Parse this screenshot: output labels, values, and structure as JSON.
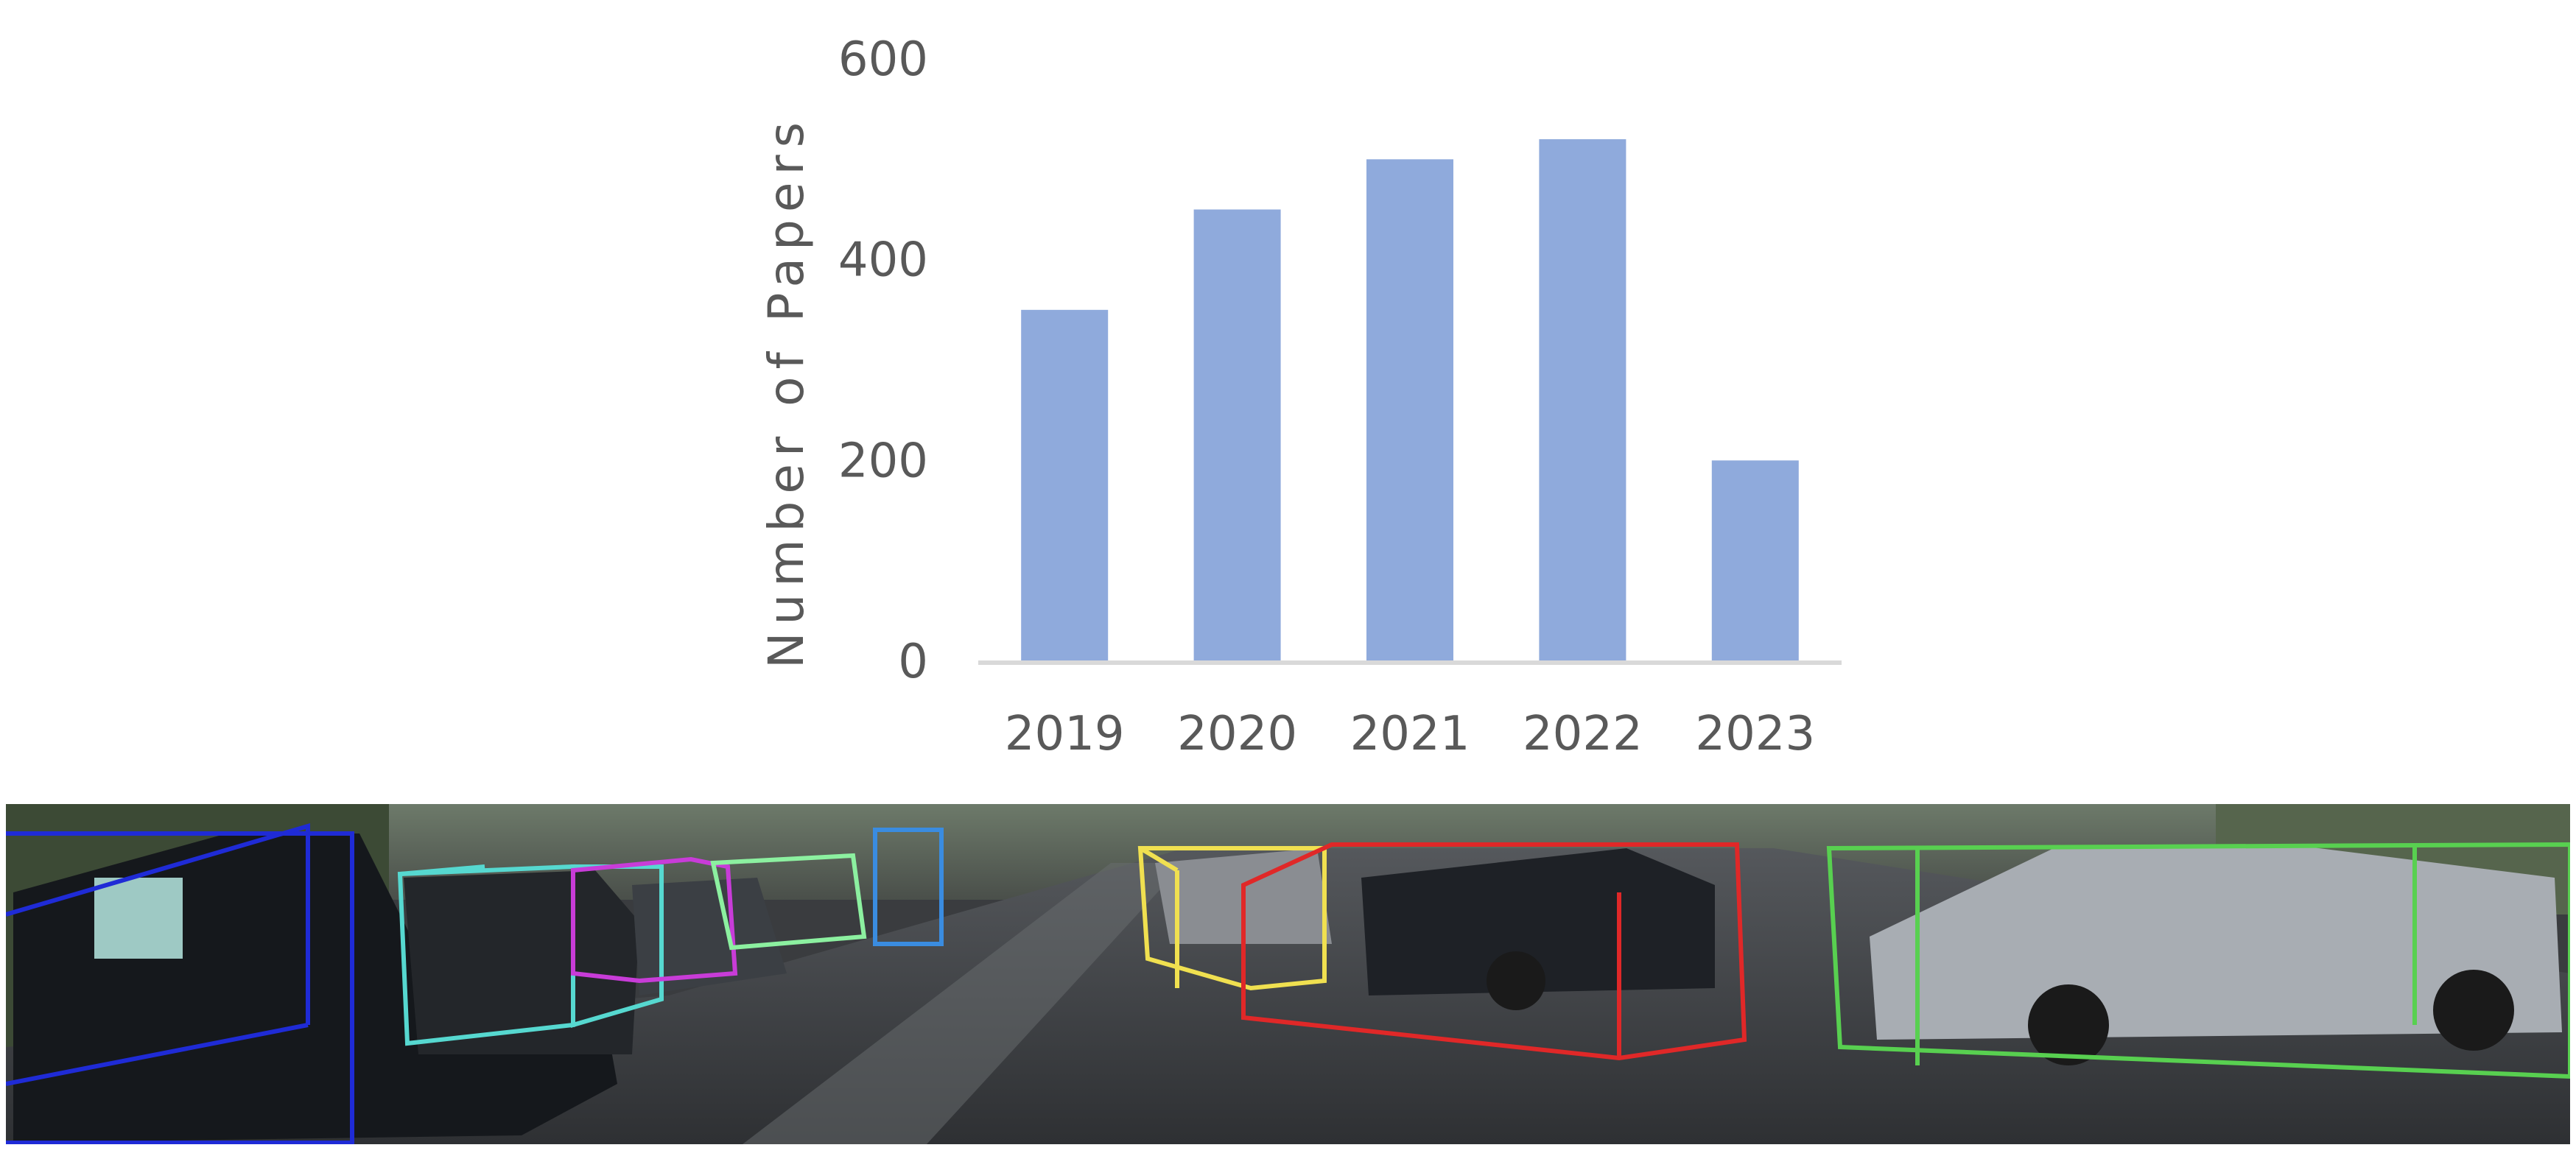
{
  "chart_data": {
    "type": "bar",
    "categories": [
      "2019",
      "2020",
      "2021",
      "2022",
      "2023"
    ],
    "values": [
      350,
      450,
      500,
      520,
      200
    ],
    "ylabel": "Number of Papers",
    "xlabel": "",
    "ylim": [
      0,
      600
    ],
    "yticks": [
      0,
      200,
      400,
      600
    ],
    "grid": false,
    "colors": {
      "bar": "#8faadc",
      "axis": "#d9d9d9",
      "text": "#595959"
    }
  },
  "scene": {
    "box_colors": [
      "#1f2bd6",
      "#56d8d0",
      "#c83cd8",
      "#8cf0a0",
      "#3a8ce0",
      "#f0e050",
      "#e02828",
      "#58d050"
    ]
  }
}
